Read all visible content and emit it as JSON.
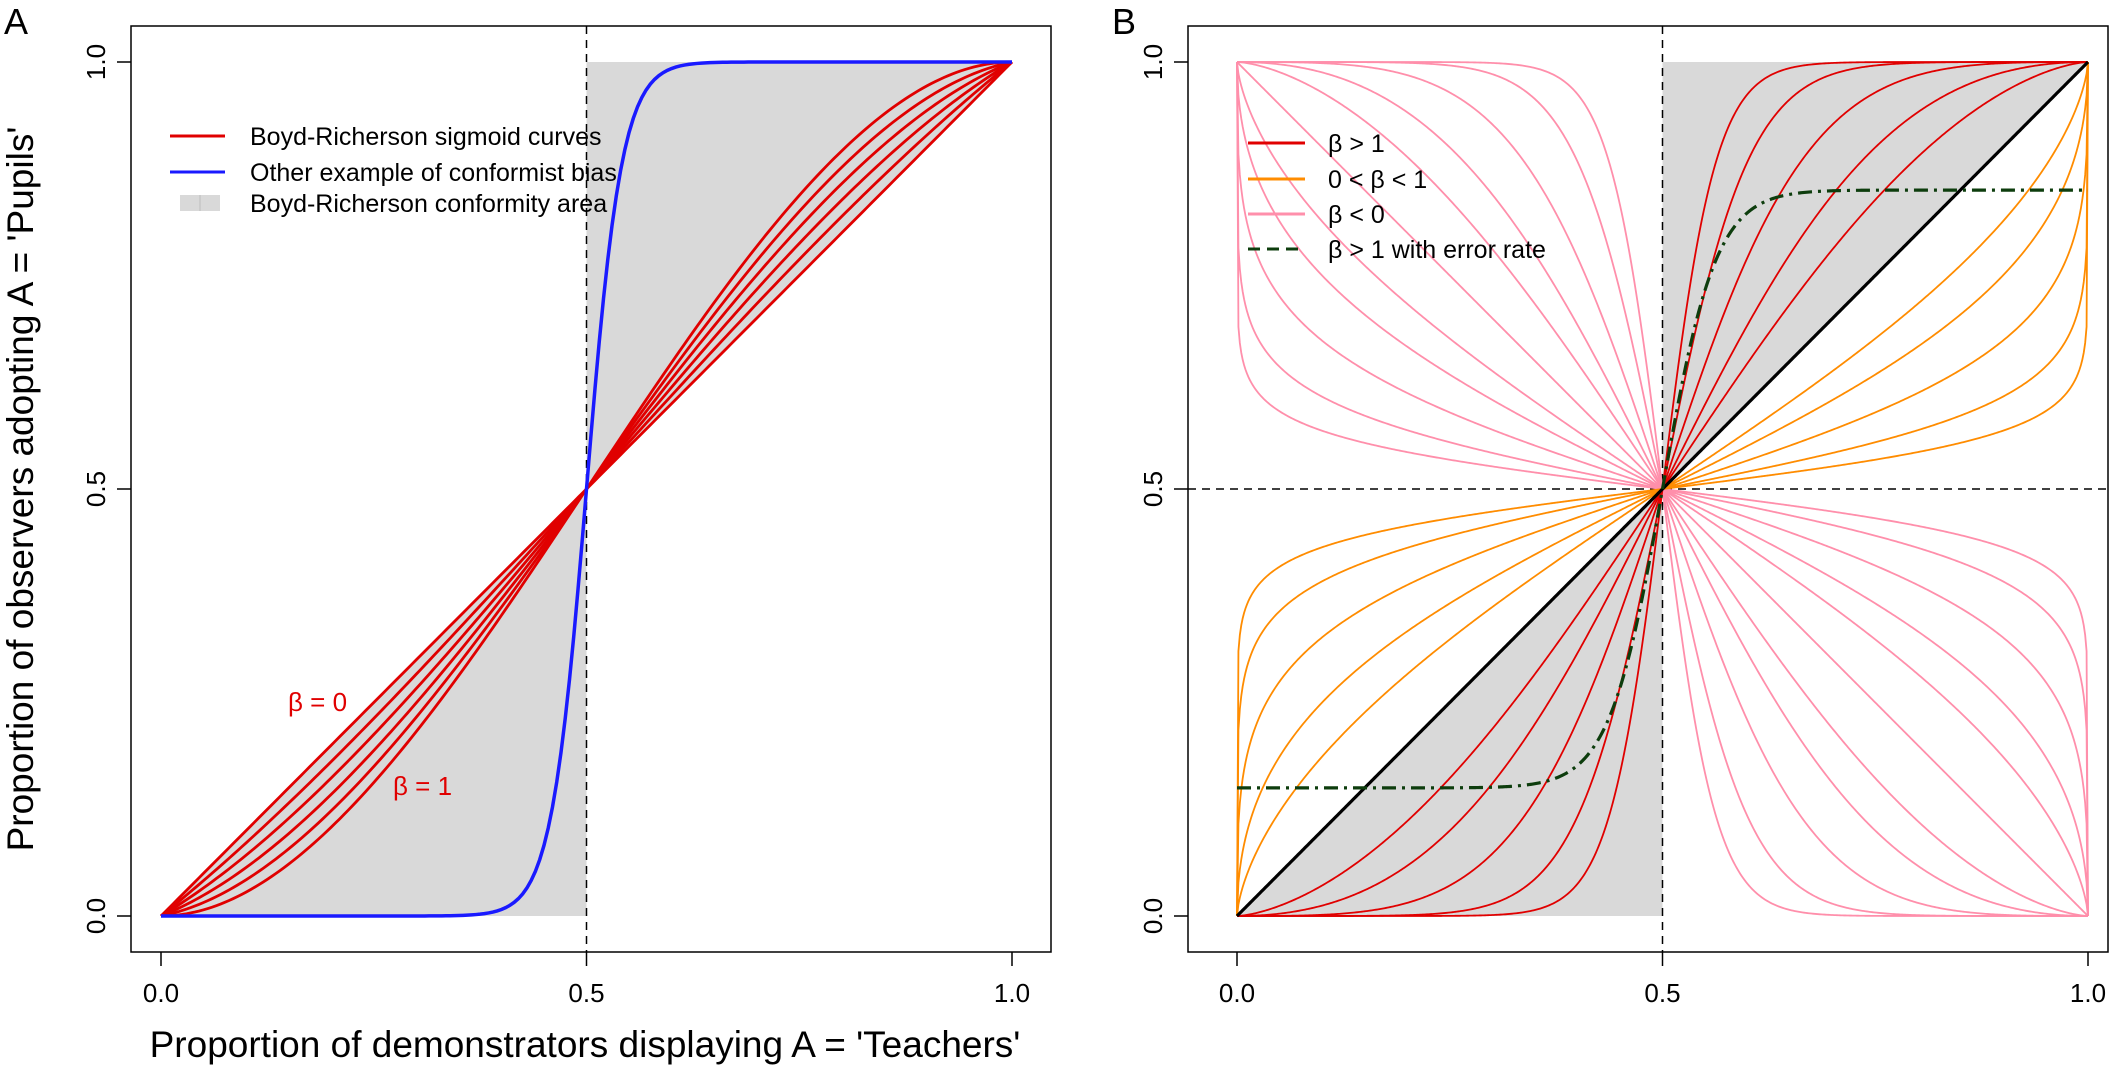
{
  "chart_data": [
    {
      "panel": "A",
      "type": "line",
      "xlabel": "Proportion of demonstrators displaying A = 'Teachers'",
      "ylabel": "Proportion of observers adopting A = 'Pupils'",
      "xlim": [
        0,
        1
      ],
      "ylim": [
        0,
        1
      ],
      "xticks": [
        "0.0",
        "0.5",
        "1.0"
      ],
      "yticks": [
        "0.0",
        "0.5",
        "1.0"
      ],
      "grid": false,
      "legend_position": "top-left",
      "reference_lines": {
        "vertical": [
          0.5
        ],
        "horizontal": []
      },
      "shaded_area": {
        "name": "Boyd-Richerson conformity area",
        "color": "#d9d9d9",
        "regions": [
          {
            "x": [
              0,
              0.5
            ],
            "y": "0 to x"
          },
          {
            "x": [
              0.5,
              1
            ],
            "y": "x to 1"
          }
        ]
      },
      "legend": [
        {
          "label": "Boyd-Richerson sigmoid curves",
          "color": "#e00000",
          "style": "solid"
        },
        {
          "label": "Other example of conformist bias",
          "color": "#1a1aff",
          "style": "solid"
        },
        {
          "label": "Boyd-Richerson conformity area",
          "color": "#d9d9d9",
          "style": "fill"
        }
      ],
      "annotations": [
        {
          "text": "β = 0",
          "color": "#e00000",
          "x": 0.25,
          "y": 0.25
        },
        {
          "text": "β = 1",
          "color": "#e00000",
          "x": 0.3,
          "y": 0.15
        }
      ],
      "series_groups": [
        {
          "name": "Boyd-Richerson sigmoid curves",
          "color": "#e00000",
          "formula": "p + beta*p*(1-p)*(2p-1)",
          "parameters": [
            0,
            0.2,
            0.4,
            0.6,
            0.8,
            1.0
          ]
        },
        {
          "name": "Other example of conformist bias",
          "color": "#1a1aff",
          "formula": "p^12/(p^12+(1-p)^12)",
          "parameters": [
            12
          ]
        }
      ]
    },
    {
      "panel": "B",
      "type": "line",
      "xlim": [
        0,
        1
      ],
      "ylim": [
        0,
        1
      ],
      "xticks": [
        "0.0",
        "0.5",
        "1.0"
      ],
      "yticks": [
        "0.0",
        "0.5",
        "1.0"
      ],
      "grid": false,
      "legend_position": "top-left",
      "reference_lines": {
        "vertical": [
          0.5
        ],
        "horizontal": [
          0.5
        ]
      },
      "shaded_area": {
        "color": "#d9d9d9",
        "regions": [
          {
            "x": [
              0,
              0.5
            ],
            "y": "0 to x"
          },
          {
            "x": [
              0.5,
              1
            ],
            "y": "x to 1"
          }
        ]
      },
      "legend": [
        {
          "label": "β > 1",
          "color": "#e00000",
          "style": "solid"
        },
        {
          "label": "0 < β < 1",
          "color": "#ff8c00",
          "style": "solid"
        },
        {
          "label": "β < 0",
          "color": "#ff8fab",
          "style": "solid"
        },
        {
          "label": "β > 1 with error rate",
          "color": "#0d3d0d",
          "style": "dashed"
        }
      ],
      "series_groups": [
        {
          "name": "β > 1",
          "color": "#e00000",
          "formula": "p^b/(p^b+(1-p)^b)",
          "parameters": [
            1.5,
            2,
            3,
            5,
            8
          ]
        },
        {
          "name": "β = 1",
          "color": "#000000",
          "formula": "p^b/(p^b+(1-p)^b)",
          "parameters": [
            1
          ]
        },
        {
          "name": "0 < β < 1",
          "color": "#ff8c00",
          "formula": "p^b/(p^b+(1-p)^b)",
          "parameters": [
            0.67,
            0.5,
            0.33,
            0.2,
            0.125
          ]
        },
        {
          "name": "β < 0",
          "color": "#ff8fab",
          "formula": "p^b/(p^b+(1-p)^b)",
          "parameters": [
            -0.125,
            -0.2,
            -0.33,
            -0.5,
            -0.67,
            -1,
            -1.5,
            -2,
            -3,
            -5,
            -8
          ]
        },
        {
          "name": "β > 1 with error rate",
          "color": "#0d3d0d",
          "formula": "e + (1-2e)*p^b/(p^b+(1-p)^b)",
          "parameters": [
            8
          ],
          "error_rate": 0.15
        }
      ]
    }
  ],
  "panels": {
    "a": {
      "letter": "A"
    },
    "b": {
      "letter": "B"
    }
  }
}
